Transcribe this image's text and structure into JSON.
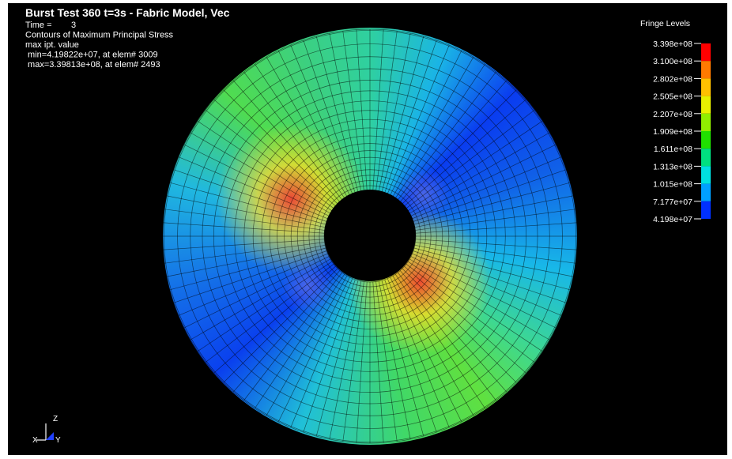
{
  "header": {
    "title": "Burst Test 360 t=3s - Fabric Model, Vec",
    "lines": [
      "Time =        3",
      "Contours of Maximum Principal Stress",
      "max ipt. value",
      " min=4.19822e+07, at elem# 3009",
      " max=3.39813e+08, at elem# 2493"
    ]
  },
  "legend": {
    "title": "Fringe Levels",
    "levels": [
      "3.398e+08",
      "3.100e+08",
      "2.802e+08",
      "2.505e+08",
      "2.207e+08",
      "1.909e+08",
      "1.611e+08",
      "1.313e+08",
      "1.015e+08",
      "7.177e+07",
      "4.198e+07"
    ],
    "colors": [
      "#ff0000",
      "#ff7a00",
      "#ffc000",
      "#e8f000",
      "#90ee00",
      "#20e000",
      "#00e080",
      "#00e0e0",
      "#00a0ff",
      "#0030ff"
    ]
  },
  "triad": {
    "z": "Z",
    "x": "X",
    "y": "Y"
  }
}
